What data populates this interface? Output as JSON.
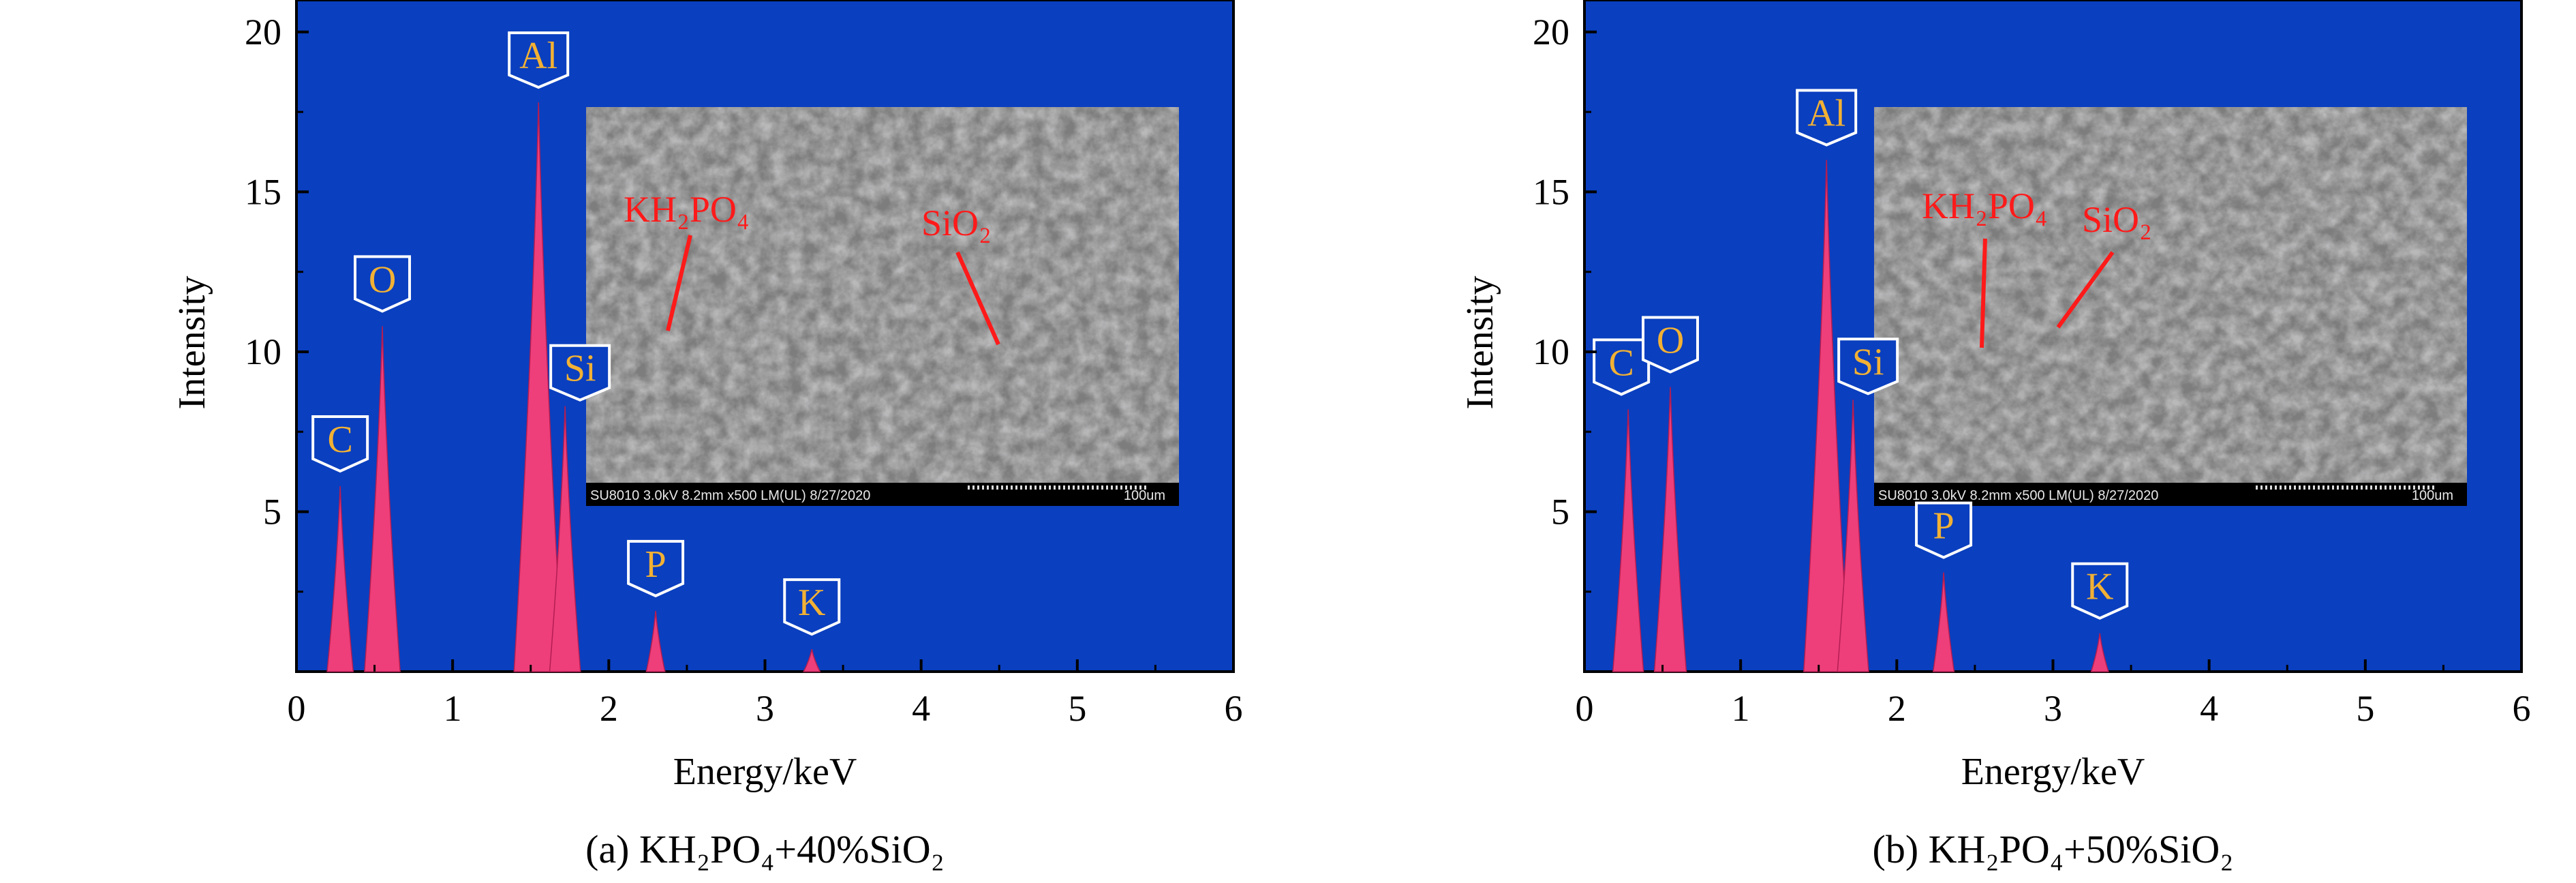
{
  "chart_data": [
    {
      "type": "area",
      "panel": "a",
      "xlabel": "Energy/keV",
      "ylabel": "Intensity",
      "xlim": [
        0,
        6
      ],
      "ylim": [
        0,
        21
      ],
      "x_ticks": [
        "0",
        "1",
        "2",
        "3",
        "4",
        "5",
        "6"
      ],
      "y_ticks": [
        "5",
        "10",
        "15",
        "20"
      ],
      "caption": "(a) KH₂PO₄+40%SiO₂",
      "peaks": [
        {
          "element": "C",
          "energy": 0.28,
          "intensity": 5.8
        },
        {
          "element": "O",
          "energy": 0.55,
          "intensity": 10.8
        },
        {
          "element": "Al",
          "energy": 1.55,
          "intensity": 17.8
        },
        {
          "element": "Si",
          "energy": 1.72,
          "intensity": 8.3
        },
        {
          "element": "P",
          "energy": 2.3,
          "intensity": 1.9
        },
        {
          "element": "K",
          "energy": 3.3,
          "intensity": 0.7
        }
      ],
      "inset": {
        "labels": [
          "KH₂PO₄",
          "SiO₂"
        ],
        "footer_left": "SU8010 3.0kV 8.2mm x500 LM(UL) 8/27/2020",
        "footer_right": "100um"
      },
      "colors": {
        "background": "#0a3fbf",
        "peak": "#ee3f7a",
        "label_text": "#f2b134",
        "annotation": "#ff1a1a"
      }
    },
    {
      "type": "area",
      "panel": "b",
      "xlabel": "Energy/keV",
      "ylabel": "Intensity",
      "xlim": [
        0,
        6
      ],
      "ylim": [
        0,
        21
      ],
      "x_ticks": [
        "0",
        "1",
        "2",
        "3",
        "4",
        "5",
        "6"
      ],
      "y_ticks": [
        "5",
        "10",
        "15",
        "20"
      ],
      "caption": "(b) KH₂PO₄+50%SiO₂",
      "peaks": [
        {
          "element": "C",
          "energy": 0.28,
          "intensity": 8.2
        },
        {
          "element": "O",
          "energy": 0.55,
          "intensity": 8.9
        },
        {
          "element": "Al",
          "energy": 1.55,
          "intensity": 16.0
        },
        {
          "element": "Si",
          "energy": 1.72,
          "intensity": 8.5
        },
        {
          "element": "P",
          "energy": 2.3,
          "intensity": 3.1
        },
        {
          "element": "K",
          "energy": 3.3,
          "intensity": 1.2
        }
      ],
      "inset": {
        "labels": [
          "KH₂PO₄",
          "SiO₂"
        ],
        "footer_left": "SU8010 3.0kV 8.2mm x500 LM(UL) 8/27/2020",
        "footer_right": "100um"
      },
      "colors": {
        "background": "#0a3fbf",
        "peak": "#ee3f7a",
        "label_text": "#f2b134",
        "annotation": "#ff1a1a"
      }
    }
  ]
}
